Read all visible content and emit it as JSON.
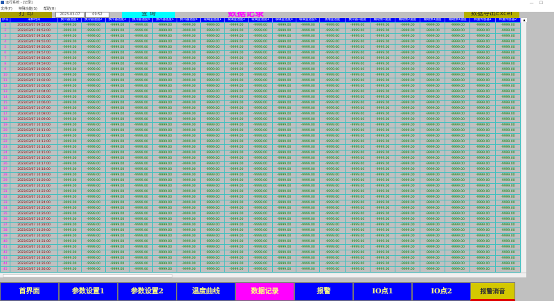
{
  "window": {
    "title": "运行系统 - [记录]",
    "menu": [
      "文件(F)",
      "特殊功能(S)",
      "帮助(H)"
    ],
    "controls": [
      "—",
      "☐"
    ]
  },
  "toolbar": {
    "print_label": "打 印",
    "date_value": "2023-03-07",
    "time_value": "09:52",
    "query_label": "查 询",
    "page_title": "数据记录",
    "export_label": "数据导出Excel"
  },
  "table": {
    "headers": [
      "序号",
      "采样时间",
      "换冷器温度1",
      "换冷器温度2",
      "换冷器温度3",
      "换冷器温度4",
      "换冷器温度5",
      "换冷器温度6",
      "玻璃釜温度1",
      "玻璃釜温度2",
      "玻璃釜温度3",
      "玻璃釜温度4",
      "玻璃釜温度5",
      "蒸馏釜温度",
      "换冷器1速度",
      "蠕动泵1速度",
      "蠕动泵2速度",
      "蠕动泵3速度",
      "蠕动泵4速度",
      "称重传感器1",
      "称重传感器2"
    ],
    "value": "-9999.00",
    "rows": [
      [
        "1",
        "2023/03/07 09:52:00"
      ],
      [
        "2",
        "2023/03/07 09:53:00"
      ],
      [
        "3",
        "2023/03/07 09:54:00"
      ],
      [
        "4",
        "2023/03/07 09:55:00"
      ],
      [
        "5",
        "2023/03/07 09:56:00"
      ],
      [
        "6",
        "2023/03/07 09:57:00"
      ],
      [
        "7",
        "2023/03/07 09:58:00"
      ],
      [
        "8",
        "2023/03/07 09:59:00"
      ],
      [
        "9",
        "2023/03/07 10:00:00"
      ],
      [
        "10",
        "2023/03/07 10:01:00"
      ],
      [
        "11",
        "2023/03/07 10:02:00"
      ],
      [
        "12",
        "2023/03/07 10:03:00"
      ],
      [
        "13",
        "2023/03/07 10:04:00"
      ],
      [
        "14",
        "2023/03/07 10:05:00"
      ],
      [
        "15",
        "2023/03/07 10:06:00"
      ],
      [
        "16",
        "2023/03/07 10:07:00"
      ],
      [
        "17",
        "2023/03/07 10:08:00"
      ],
      [
        "18",
        "2023/03/07 10:09:00"
      ],
      [
        "19",
        "2023/03/07 10:10:00"
      ],
      [
        "20",
        "2023/03/07 10:11:00"
      ],
      [
        "21",
        "2023/03/07 10:12:00"
      ],
      [
        "22",
        "2023/03/07 10:13:00"
      ],
      [
        "23",
        "2023/03/07 10:14:00"
      ],
      [
        "24",
        "2023/03/07 10:15:00"
      ],
      [
        "25",
        "2023/03/07 10:16:00"
      ],
      [
        "26",
        "2023/03/07 10:17:00"
      ],
      [
        "27",
        "2023/03/07 10:18:00"
      ],
      [
        "28",
        "2023/03/07 10:19:00"
      ],
      [
        "29",
        "2023/03/07 10:20:00"
      ],
      [
        "30",
        "2023/03/07 10:21:00"
      ],
      [
        "31",
        "2023/03/07 10:22:00"
      ],
      [
        "32",
        "2023/03/07 10:23:00"
      ],
      [
        "33",
        "2023/03/07 10:24:00"
      ],
      [
        "34",
        "2023/03/07 10:25:00"
      ],
      [
        "35",
        "2023/03/07 10:26:00"
      ],
      [
        "36",
        "2023/03/07 10:27:00"
      ],
      [
        "37",
        "2023/03/07 10:28:00"
      ],
      [
        "38",
        "2023/03/07 10:29:00"
      ],
      [
        "39",
        "2023/03/07 10:30:00"
      ],
      [
        "40",
        "2023/03/07 10:31:00"
      ],
      [
        "41",
        "2023/03/07 10:32:00"
      ],
      [
        "42",
        "2023/03/07 10:33:00"
      ],
      [
        "43",
        "2023/03/07 10:34:00"
      ],
      [
        "44",
        "2023/03/07 10:35:00"
      ],
      [
        "45",
        "2023/03/07 10:36:00"
      ],
      [
        "46",
        "2023/03/07 10:37:00"
      ],
      [
        "47",
        "2023/03/07 10:38:00"
      ],
      [
        "48",
        "2023/03/07 10:39:00"
      ],
      [
        "49",
        "2023/03/07 10:40:00"
      ]
    ]
  },
  "nav": [
    "首界面",
    "参数设置1",
    "参数设置2",
    "温度曲线",
    "数据记录",
    "报警",
    "IO点1",
    "IO点2",
    "报警消音"
  ],
  "colors": {
    "header": "#0000ff",
    "active_nav": "#ff00ff",
    "nav": "#0000ff",
    "mute": "#d4c800",
    "grid": "#40c0c0"
  }
}
